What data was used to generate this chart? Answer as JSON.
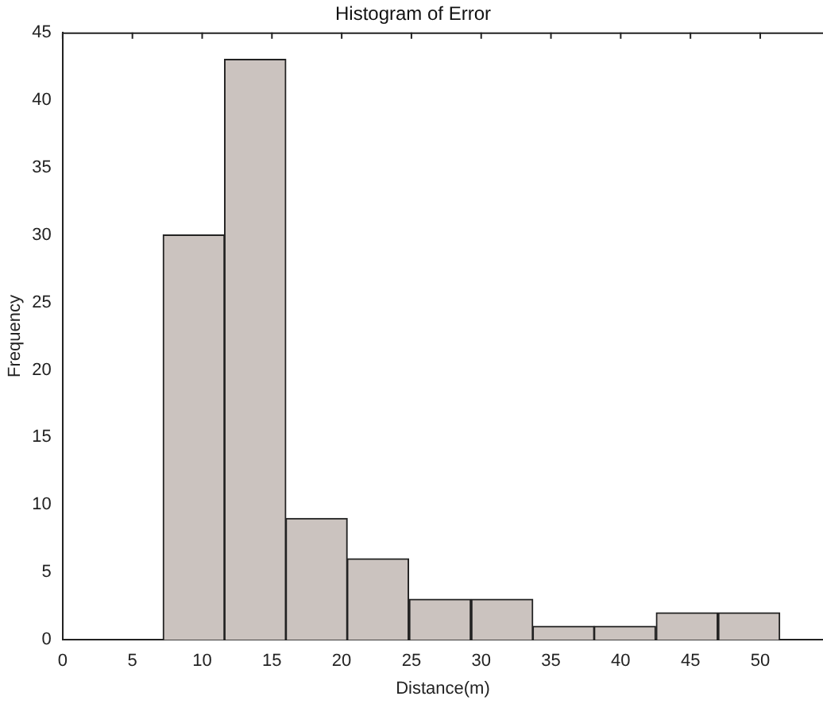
{
  "chart_data": {
    "type": "histogram",
    "title": "Histogram of Error",
    "xlabel": "Distance(m)",
    "ylabel": "Frequency",
    "bins": [
      7.2,
      11.6,
      16.0,
      20.4,
      24.8,
      29.3,
      33.7,
      38.1,
      42.5,
      47.0,
      51.4
    ],
    "values": [
      30,
      43,
      9,
      6,
      3,
      3,
      1,
      1,
      2,
      2
    ],
    "color": "#cbc3bf",
    "xlim": [
      0,
      54.5
    ],
    "xticks": [
      0,
      5,
      10,
      15,
      20,
      25,
      30,
      35,
      40,
      45,
      50
    ],
    "ylim": [
      0,
      45
    ],
    "yticks": [
      0,
      5,
      10,
      15,
      20,
      25,
      30,
      35,
      40,
      45
    ],
    "grid": false,
    "legend": false
  }
}
